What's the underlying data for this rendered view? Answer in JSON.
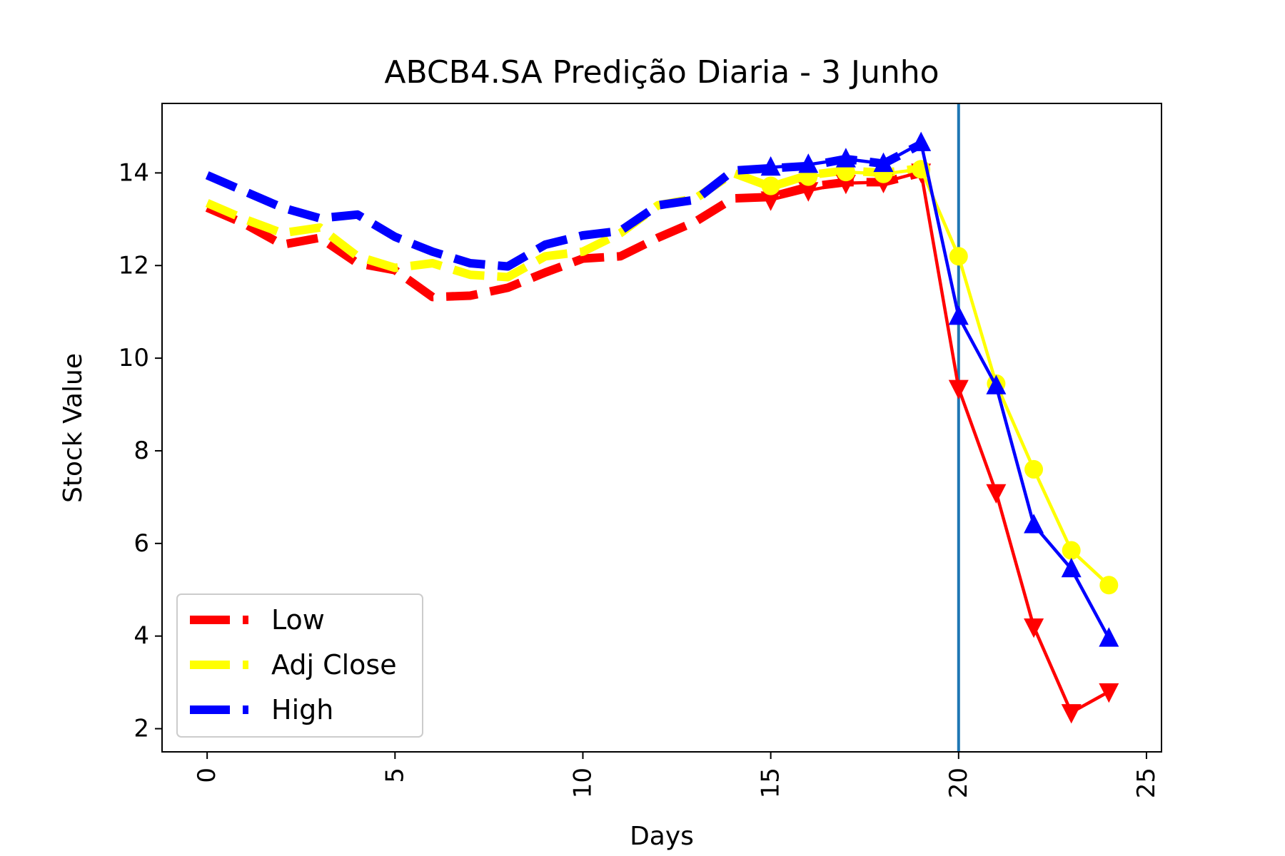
{
  "chart_data": {
    "type": "line",
    "title": "ABCB4.SA Predição Diaria - 3 Junho",
    "xlabel": "Days",
    "ylabel": "Stock Value",
    "xlim": [
      -1.2,
      25.4
    ],
    "ylim": [
      1.5,
      15.5
    ],
    "xticks": [
      0,
      5,
      10,
      15,
      20,
      25
    ],
    "yticks": [
      2,
      4,
      6,
      8,
      10,
      12,
      14
    ],
    "grid": false,
    "legend_position": "lower-left",
    "vline": {
      "x": 20,
      "color": "#1f77b4"
    },
    "series": [
      {
        "name": "Low",
        "color": "#ff0000",
        "marker": "triangle-down",
        "history": {
          "x": [
            0,
            1,
            2,
            3,
            4,
            5,
            6,
            7,
            8,
            9,
            10,
            11,
            12,
            13,
            14,
            15,
            16,
            17,
            18,
            19
          ],
          "y": [
            13.25,
            12.9,
            12.45,
            12.6,
            12.05,
            11.9,
            11.32,
            11.35,
            11.52,
            11.85,
            12.15,
            12.2,
            12.6,
            12.95,
            13.45,
            13.48,
            13.7,
            13.8,
            13.8,
            14.0
          ]
        },
        "prediction": {
          "x": [
            15,
            16,
            17,
            18,
            19,
            20,
            21,
            22,
            23,
            24
          ],
          "y": [
            13.42,
            13.62,
            13.78,
            13.8,
            14.02,
            9.35,
            7.1,
            4.2,
            2.35,
            2.8
          ]
        }
      },
      {
        "name": "Adj Close",
        "color": "#ffff00",
        "marker": "circle",
        "history": {
          "x": [
            0,
            1,
            2,
            3,
            4,
            5,
            6,
            7,
            8,
            9,
            10,
            11,
            12,
            13,
            14,
            15,
            16,
            17,
            18,
            19
          ],
          "y": [
            13.35,
            13.0,
            12.7,
            12.82,
            12.2,
            11.95,
            12.05,
            11.8,
            11.75,
            12.2,
            12.3,
            12.7,
            13.3,
            13.45,
            14.0,
            13.7,
            13.95,
            14.05,
            14.0,
            14.1
          ]
        },
        "prediction": {
          "x": [
            15,
            16,
            17,
            18,
            19,
            20,
            21,
            22,
            23,
            24
          ],
          "y": [
            13.72,
            13.92,
            14.02,
            13.98,
            14.08,
            12.2,
            9.45,
            7.6,
            5.85,
            5.1
          ]
        }
      },
      {
        "name": "High",
        "color": "#0000ff",
        "marker": "triangle-up",
        "history": {
          "x": [
            0,
            1,
            2,
            3,
            4,
            5,
            6,
            7,
            8,
            9,
            10,
            11,
            12,
            13,
            14,
            15,
            16,
            17,
            18,
            19
          ],
          "y": [
            13.95,
            13.6,
            13.25,
            13.02,
            13.1,
            12.62,
            12.3,
            12.05,
            11.98,
            12.45,
            12.65,
            12.75,
            13.3,
            13.42,
            14.05,
            14.1,
            14.15,
            14.3,
            14.2,
            14.62
          ]
        },
        "prediction": {
          "x": [
            15,
            16,
            17,
            18,
            19,
            20,
            21,
            22,
            23,
            24
          ],
          "y": [
            14.12,
            14.18,
            14.3,
            14.2,
            14.65,
            10.9,
            9.4,
            6.4,
            5.45,
            3.95
          ]
        }
      }
    ]
  }
}
